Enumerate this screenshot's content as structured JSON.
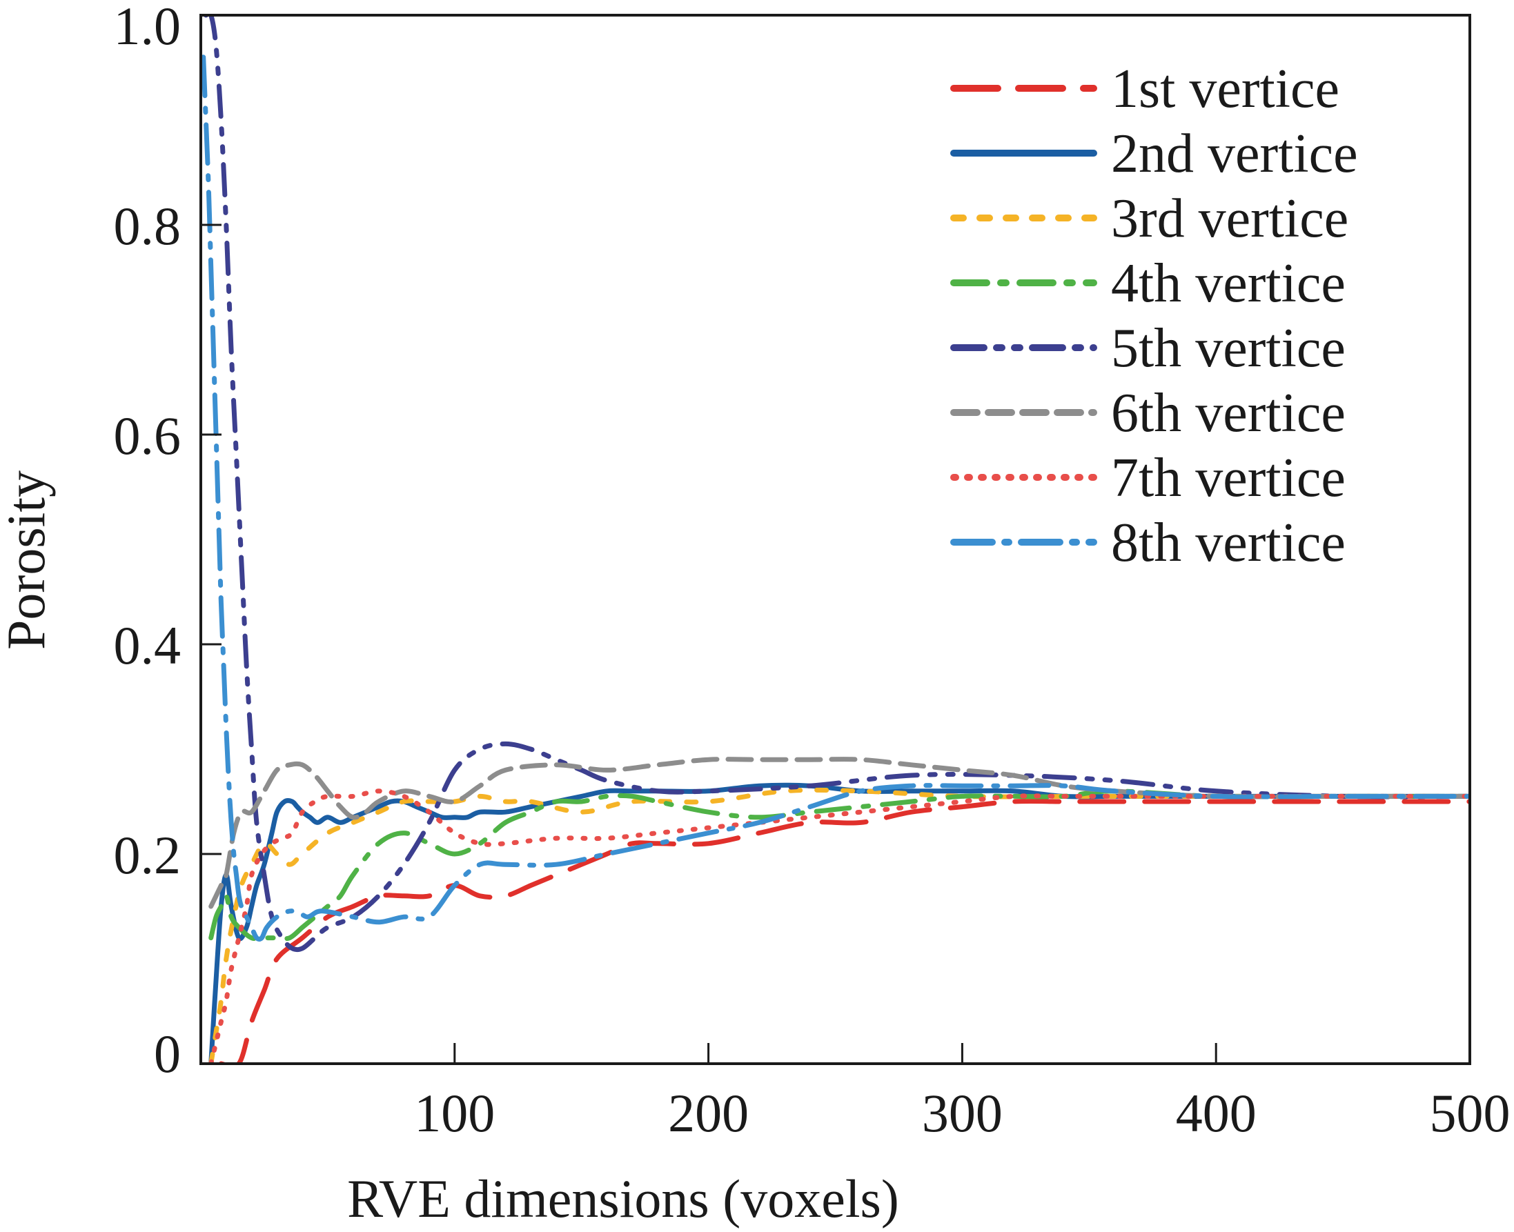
{
  "chart_data": {
    "type": "line",
    "title": "",
    "xlabel": "RVE dimensions (voxels)",
    "ylabel": "Porosity",
    "xlim": [
      0,
      500
    ],
    "ylim": [
      0,
      1.0
    ],
    "xticks": [
      100,
      200,
      300,
      400,
      500
    ],
    "xtick_labels": [
      "100",
      "200",
      "300",
      "400",
      "500"
    ],
    "yticks": [
      0,
      0.2,
      0.4,
      0.6,
      0.8,
      1.0
    ],
    "ytick_labels": [
      "0",
      "0.2",
      "0.4",
      "0.6",
      "0.8",
      "1.0"
    ],
    "grid": false,
    "legend_position": "top-right",
    "series": [
      {
        "name": "1st vertice",
        "color": "#e0302b",
        "dash": "long-dash",
        "x": [
          8,
          15,
          20,
          25,
          30,
          40,
          50,
          60,
          70,
          80,
          90,
          100,
          110,
          120,
          130,
          140,
          150,
          160,
          170,
          180,
          200,
          220,
          240,
          260,
          280,
          300,
          320,
          340,
          360,
          380,
          400,
          450,
          500
        ],
        "y": [
          0.0,
          0.0,
          0.04,
          0.07,
          0.1,
          0.12,
          0.14,
          0.15,
          0.16,
          0.16,
          0.16,
          0.17,
          0.16,
          0.16,
          0.17,
          0.18,
          0.19,
          0.2,
          0.21,
          0.21,
          0.21,
          0.22,
          0.23,
          0.23,
          0.24,
          0.245,
          0.25,
          0.25,
          0.25,
          0.25,
          0.25,
          0.25,
          0.25
        ]
      },
      {
        "name": "2nd vertice",
        "color": "#1b5ea3",
        "dash": "solid",
        "x": [
          4,
          6,
          8,
          10,
          12,
          15,
          18,
          20,
          22,
          25,
          28,
          30,
          33,
          36,
          38,
          40,
          43,
          46,
          50,
          55,
          60,
          65,
          70,
          75,
          80,
          85,
          90,
          95,
          100,
          105,
          110,
          120,
          130,
          140,
          150,
          160,
          170,
          180,
          200,
          220,
          240,
          260,
          280,
          300,
          320,
          340,
          360,
          380,
          400,
          450,
          500
        ],
        "y": [
          0.0,
          0.08,
          0.15,
          0.18,
          0.15,
          0.12,
          0.13,
          0.15,
          0.17,
          0.19,
          0.22,
          0.24,
          0.25,
          0.25,
          0.245,
          0.24,
          0.235,
          0.23,
          0.235,
          0.23,
          0.235,
          0.24,
          0.245,
          0.25,
          0.25,
          0.245,
          0.24,
          0.235,
          0.235,
          0.235,
          0.24,
          0.24,
          0.245,
          0.25,
          0.255,
          0.26,
          0.26,
          0.26,
          0.26,
          0.265,
          0.265,
          0.26,
          0.26,
          0.26,
          0.26,
          0.255,
          0.255,
          0.255,
          0.255,
          0.255,
          0.255
        ]
      },
      {
        "name": "3rd vertice",
        "color": "#f5b326",
        "dash": "dotted-dash",
        "x": [
          4,
          6,
          8,
          10,
          13,
          16,
          20,
          25,
          30,
          35,
          40,
          50,
          60,
          70,
          80,
          90,
          100,
          110,
          120,
          130,
          150,
          170,
          200,
          230,
          260,
          300,
          350,
          400,
          450,
          500
        ],
        "y": [
          0.0,
          0.03,
          0.06,
          0.1,
          0.14,
          0.17,
          0.19,
          0.21,
          0.2,
          0.19,
          0.2,
          0.22,
          0.23,
          0.24,
          0.25,
          0.25,
          0.25,
          0.255,
          0.25,
          0.25,
          0.24,
          0.25,
          0.25,
          0.26,
          0.26,
          0.255,
          0.255,
          0.255,
          0.255,
          0.255
        ]
      },
      {
        "name": "4th vertice",
        "color": "#4fb246",
        "dash": "dash-dot",
        "x": [
          4,
          6,
          8,
          10,
          12,
          15,
          20,
          25,
          30,
          35,
          40,
          45,
          50,
          55,
          60,
          70,
          80,
          90,
          100,
          110,
          120,
          130,
          140,
          150,
          160,
          170,
          180,
          200,
          220,
          240,
          260,
          280,
          300,
          320,
          340,
          360,
          400,
          450,
          500
        ],
        "y": [
          0.12,
          0.14,
          0.15,
          0.16,
          0.14,
          0.13,
          0.12,
          0.12,
          0.12,
          0.12,
          0.13,
          0.14,
          0.15,
          0.16,
          0.18,
          0.21,
          0.22,
          0.21,
          0.2,
          0.21,
          0.23,
          0.24,
          0.25,
          0.25,
          0.255,
          0.255,
          0.25,
          0.24,
          0.235,
          0.24,
          0.245,
          0.25,
          0.255,
          0.255,
          0.255,
          0.26,
          0.255,
          0.255,
          0.255
        ]
      },
      {
        "name": "5th vertice",
        "color": "#3c3f8f",
        "dash": "dash-dot-dot",
        "x": [
          2,
          4,
          6,
          8,
          10,
          12,
          14,
          16,
          18,
          20,
          22,
          25,
          28,
          32,
          36,
          40,
          45,
          50,
          60,
          70,
          80,
          90,
          100,
          110,
          120,
          130,
          140,
          150,
          160,
          180,
          200,
          240,
          280,
          320,
          360,
          400,
          450,
          500
        ],
        "y": [
          1.0,
          1.0,
          0.97,
          0.9,
          0.8,
          0.68,
          0.58,
          0.48,
          0.38,
          0.3,
          0.23,
          0.18,
          0.14,
          0.12,
          0.11,
          0.11,
          0.12,
          0.13,
          0.14,
          0.16,
          0.19,
          0.23,
          0.28,
          0.3,
          0.305,
          0.3,
          0.29,
          0.28,
          0.27,
          0.26,
          0.26,
          0.265,
          0.275,
          0.275,
          0.27,
          0.26,
          0.255,
          0.255
        ]
      },
      {
        "name": "6th vertice",
        "color": "#8d8d8d",
        "dash": "short-dash",
        "x": [
          4,
          6,
          8,
          10,
          13,
          16,
          20,
          25,
          30,
          35,
          40,
          45,
          50,
          55,
          60,
          65,
          70,
          80,
          90,
          100,
          110,
          120,
          140,
          160,
          180,
          200,
          220,
          240,
          260,
          280,
          300,
          320,
          340,
          360,
          400,
          450,
          500
        ],
        "y": [
          0.15,
          0.16,
          0.17,
          0.18,
          0.22,
          0.24,
          0.24,
          0.26,
          0.28,
          0.285,
          0.285,
          0.275,
          0.26,
          0.245,
          0.235,
          0.24,
          0.25,
          0.26,
          0.255,
          0.25,
          0.265,
          0.28,
          0.285,
          0.28,
          0.285,
          0.29,
          0.29,
          0.29,
          0.29,
          0.285,
          0.28,
          0.275,
          0.265,
          0.26,
          0.255,
          0.255,
          0.255
        ]
      },
      {
        "name": "7th vertice",
        "color": "#e84e4a",
        "dash": "dotted",
        "x": [
          4,
          6,
          8,
          10,
          12,
          15,
          18,
          20,
          24,
          28,
          32,
          36,
          40,
          45,
          50,
          60,
          70,
          80,
          90,
          100,
          110,
          120,
          140,
          160,
          180,
          200,
          220,
          240,
          260,
          280,
          300,
          320,
          340,
          360,
          380,
          400,
          450,
          500
        ],
        "y": [
          0.0,
          0.02,
          0.04,
          0.06,
          0.09,
          0.12,
          0.15,
          0.18,
          0.2,
          0.21,
          0.215,
          0.22,
          0.24,
          0.25,
          0.255,
          0.255,
          0.26,
          0.255,
          0.24,
          0.22,
          0.21,
          0.21,
          0.215,
          0.215,
          0.22,
          0.225,
          0.23,
          0.235,
          0.24,
          0.245,
          0.25,
          0.255,
          0.255,
          0.255,
          0.255,
          0.255,
          0.255,
          0.255
        ]
      },
      {
        "name": "8th vertice",
        "color": "#3b8fd1",
        "dash": "long-dash-dot",
        "x": [
          1,
          2,
          3,
          4,
          5,
          6,
          7,
          8,
          9,
          10,
          11,
          12,
          13,
          14,
          15,
          16,
          18,
          20,
          22,
          24,
          26,
          30,
          34,
          38,
          42,
          46,
          50,
          60,
          70,
          80,
          90,
          100,
          110,
          120,
          140,
          160,
          180,
          200,
          220,
          240,
          260,
          280,
          300,
          320,
          340,
          360,
          400,
          450,
          500
        ],
        "y": [
          0.96,
          0.9,
          0.84,
          0.76,
          0.68,
          0.6,
          0.52,
          0.44,
          0.38,
          0.32,
          0.27,
          0.23,
          0.2,
          0.18,
          0.16,
          0.15,
          0.14,
          0.13,
          0.12,
          0.12,
          0.13,
          0.14,
          0.145,
          0.145,
          0.14,
          0.145,
          0.145,
          0.14,
          0.135,
          0.14,
          0.14,
          0.17,
          0.19,
          0.19,
          0.19,
          0.2,
          0.21,
          0.22,
          0.23,
          0.245,
          0.26,
          0.265,
          0.265,
          0.265,
          0.265,
          0.26,
          0.255,
          0.255,
          0.255
        ]
      }
    ]
  }
}
